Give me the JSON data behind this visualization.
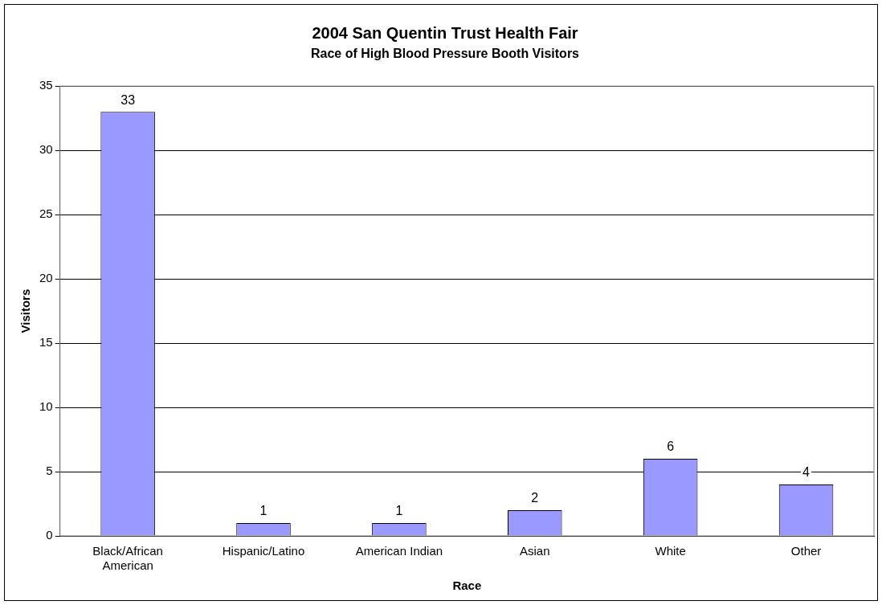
{
  "chart_data": {
    "type": "bar",
    "title": "2004 San Quentin Trust Health Fair",
    "subtitle": "Race of High Blood Pressure Booth Visitors",
    "xlabel": "Race",
    "ylabel": "Visitors",
    "categories": [
      "Black/African American",
      "Hispanic/Latino",
      "American Indian",
      "Asian",
      "White",
      "Other"
    ],
    "values": [
      33,
      1,
      1,
      2,
      6,
      4
    ],
    "color": "#9999ff",
    "ylim": [
      0,
      35
    ],
    "yticks": [
      0,
      5,
      10,
      15,
      20,
      25,
      30,
      35
    ],
    "grid": "y",
    "legend": false,
    "data_labels": true
  }
}
